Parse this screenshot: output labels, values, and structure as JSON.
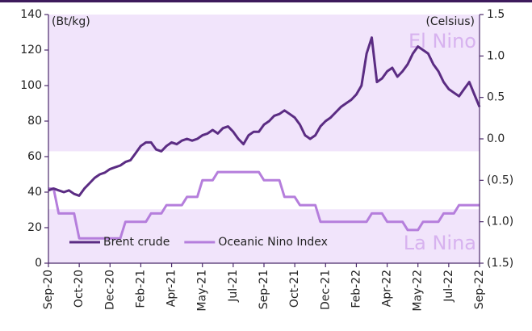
{
  "chart_data": {
    "type": "line",
    "y_label": "(Bt/kg)",
    "y2_label": "(Celsius)",
    "categories": [
      "Sep-20",
      null,
      null,
      null,
      null,
      null,
      "Oct-20",
      null,
      null,
      null,
      null,
      null,
      "Dec-20",
      null,
      null,
      null,
      null,
      null,
      "Feb-21",
      null,
      null,
      null,
      null,
      null,
      "Apr-21",
      null,
      null,
      null,
      null,
      null,
      "May-21",
      null,
      null,
      null,
      null,
      null,
      "Jul-21",
      null,
      null,
      null,
      null,
      null,
      "Sep-21",
      null,
      null,
      null,
      null,
      null,
      "Oct-21",
      null,
      null,
      null,
      null,
      null,
      "Dec-21",
      null,
      null,
      null,
      null,
      null,
      "Feb-22",
      null,
      null,
      null,
      null,
      null,
      "Apr-22",
      null,
      null,
      null,
      null,
      null,
      "May-22",
      null,
      null,
      null,
      null,
      null,
      "Jul-22",
      null,
      null,
      null,
      null,
      null,
      "Sep-22"
    ],
    "series": [
      {
        "name": "Brent crude",
        "color": "#5b2c83",
        "axis": "y",
        "values": [
          41,
          42,
          41,
          40,
          41,
          39,
          38,
          42,
          45,
          48,
          50,
          51,
          53,
          54,
          55,
          57,
          58,
          62,
          66,
          68,
          68,
          64,
          63,
          66,
          68,
          67,
          69,
          70,
          69,
          70,
          72,
          73,
          75,
          73,
          76,
          77,
          74,
          70,
          67,
          72,
          74,
          74,
          78,
          80,
          83,
          84,
          86,
          84,
          82,
          78,
          72,
          70,
          72,
          77,
          80,
          82,
          85,
          88,
          90,
          92,
          95,
          100,
          118,
          127,
          102,
          104,
          108,
          110,
          105,
          108,
          112,
          118,
          122,
          120,
          118,
          112,
          108,
          102,
          98,
          96,
          94,
          98,
          102,
          95,
          88
        ]
      },
      {
        "name": "Oceanic Nino Index",
        "color": "#b57edc",
        "axis": "y2",
        "values": [
          -0.6,
          -0.6,
          -0.9,
          -0.9,
          -0.9,
          -0.9,
          -1.2,
          -1.2,
          -1.2,
          -1.2,
          -1.2,
          -1.2,
          -1.2,
          -1.2,
          -1.2,
          -1.0,
          -1.0,
          -1.0,
          -1.0,
          -1.0,
          -0.9,
          -0.9,
          -0.9,
          -0.8,
          -0.8,
          -0.8,
          -0.8,
          -0.7,
          -0.7,
          -0.7,
          -0.5,
          -0.5,
          -0.5,
          -0.4,
          -0.4,
          -0.4,
          -0.4,
          -0.4,
          -0.4,
          -0.4,
          -0.4,
          -0.4,
          -0.5,
          -0.5,
          -0.5,
          -0.5,
          -0.7,
          -0.7,
          -0.7,
          -0.8,
          -0.8,
          -0.8,
          -0.8,
          -1.0,
          -1.0,
          -1.0,
          -1.0,
          -1.0,
          -1.0,
          -1.0,
          -1.0,
          -1.0,
          -1.0,
          -0.9,
          -0.9,
          -0.9,
          -1.0,
          -1.0,
          -1.0,
          -1.0,
          -1.1,
          -1.1,
          -1.1,
          -1.0,
          -1.0,
          -1.0,
          -1.0,
          -0.9,
          -0.9,
          -0.9,
          -0.8,
          -0.8,
          -0.8,
          -0.8,
          -0.8
        ]
      }
    ],
    "bands": [
      {
        "label": "El Nino",
        "color": "#f1e4fb",
        "y2": [
          -0.15,
          1.5
        ]
      },
      {
        "label": "La Nina",
        "color": "#f1e4fb",
        "y2": [
          -1.5,
          -0.85
        ]
      }
    ],
    "ylim": [
      0,
      140
    ],
    "yticks": [
      0,
      20,
      40,
      60,
      80,
      100,
      120,
      140
    ],
    "y2lim": [
      -1.5,
      1.5
    ],
    "y2ticks": [
      {
        "value": -1.5,
        "label": "(1.5)"
      },
      {
        "value": -1.0,
        "label": "(1.0)"
      },
      {
        "value": -0.5,
        "label": "(0.5)"
      },
      {
        "value": 0.0,
        "label": "0.0"
      },
      {
        "value": 0.5,
        "label": "0.5"
      },
      {
        "value": 1.0,
        "label": "1.0"
      },
      {
        "value": 1.5,
        "label": "1.5"
      }
    ],
    "legend": "lower left",
    "grid": false
  }
}
